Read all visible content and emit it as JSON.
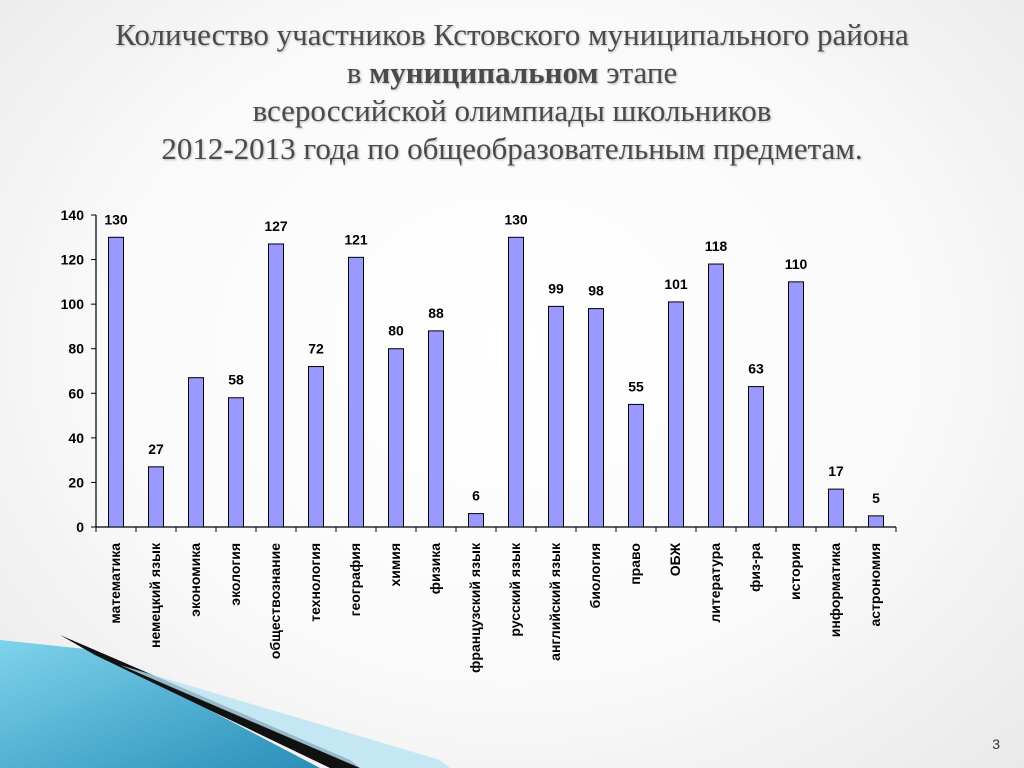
{
  "slide": {
    "title_lines": [
      "Количество участников  Кстовского муниципального района",
      "этапе",
      "всероссийской олимпиады школьников",
      "2012-2013 года по общеобразовательным предметам."
    ],
    "title_line2_prefix": "в",
    "title_line2_bold": "муниципальном",
    "page_number": "3"
  },
  "colors": {
    "bar_fill": "#9999ff",
    "bar_stroke": "#000000",
    "accent": "#4bb3d6"
  },
  "chart_data": {
    "type": "bar",
    "categories": [
      "математика",
      "немецкий язык",
      "экономика",
      "экология",
      "обществознание",
      "технология",
      "география",
      "химия",
      "физика",
      "французский язык",
      "русский язык",
      "английский язык",
      "биология",
      "право",
      "ОБЖ",
      "литература",
      "физ-ра",
      "история",
      "информатика",
      "астрономия"
    ],
    "values": [
      130,
      27,
      67,
      58,
      127,
      72,
      121,
      80,
      88,
      6,
      130,
      99,
      98,
      55,
      101,
      118,
      63,
      110,
      17,
      5
    ],
    "data_labels": [
      "130",
      "27",
      "",
      "58",
      "127",
      "72",
      "121",
      "80",
      "88",
      "6",
      "130",
      "99",
      "98",
      "55",
      "101",
      "118",
      "63",
      "110",
      "17",
      "5"
    ],
    "ylim": [
      0,
      140
    ],
    "yticks": [
      0,
      20,
      40,
      60,
      80,
      100,
      120,
      140
    ],
    "grid": false,
    "legend": "none"
  }
}
